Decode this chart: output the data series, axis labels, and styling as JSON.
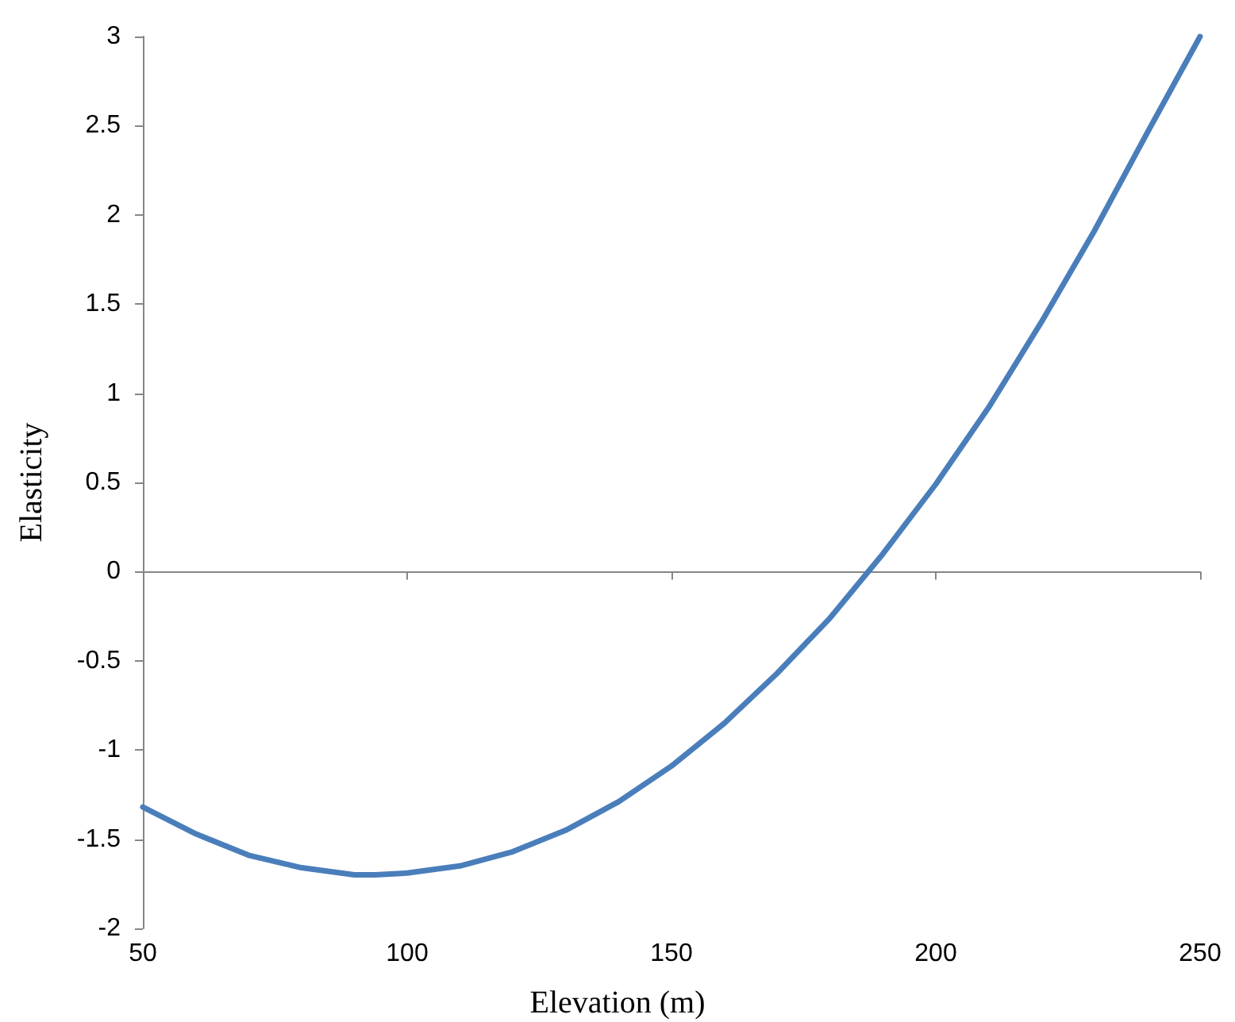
{
  "chart_data": {
    "type": "line",
    "xlabel": "Elevation (m)",
    "ylabel": "Elasticity",
    "x": [
      50,
      60,
      70,
      80,
      90,
      94,
      100,
      110,
      120,
      130,
      140,
      150,
      160,
      170,
      180,
      190,
      200,
      210,
      220,
      230,
      240,
      250
    ],
    "series": [
      {
        "color": "#4a7ebb",
        "values": [
          -1.32,
          -1.47,
          -1.59,
          -1.66,
          -1.7,
          -1.7,
          -1.69,
          -1.65,
          -1.57,
          -1.45,
          -1.29,
          -1.09,
          -0.85,
          -0.57,
          -0.26,
          0.1,
          0.49,
          0.92,
          1.4,
          1.91,
          2.46,
          3.0
        ]
      }
    ],
    "xlim": [
      50,
      250
    ],
    "xticks": [
      50,
      100,
      150,
      200,
      250
    ],
    "ylim": [
      -2,
      3
    ],
    "yticks": [
      -2,
      -1.5,
      -1,
      -0.5,
      0,
      0.5,
      1,
      1.5,
      2,
      2.5,
      3
    ],
    "marker": "none",
    "line_style": "solid"
  }
}
